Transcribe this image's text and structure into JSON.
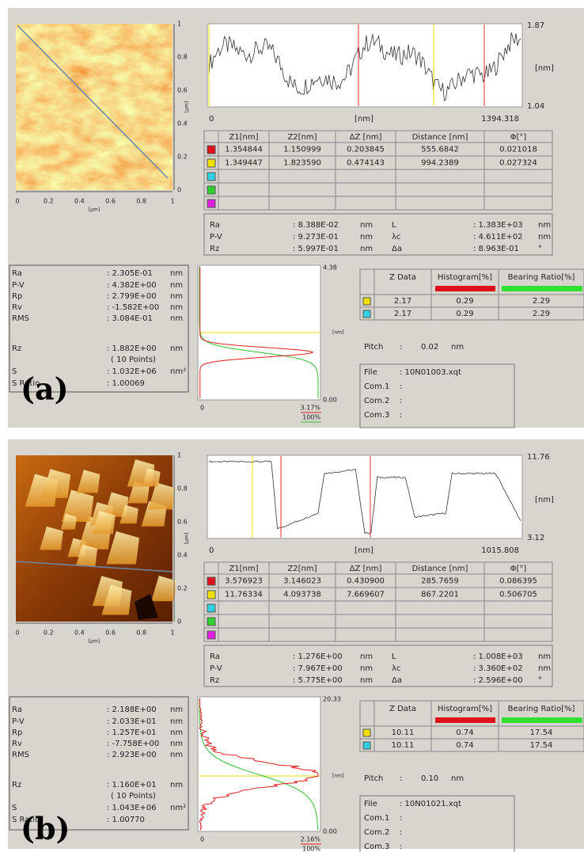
{
  "panels": [
    {
      "label": "(a)",
      "image": {
        "xticks": [
          "0",
          "0.2",
          "0.4",
          "0.6",
          "0.8",
          "1"
        ],
        "yticks": [
          "0",
          "0.2",
          "0.4",
          "0.6",
          "0.8",
          "1"
        ],
        "unit": "[μm]"
      },
      "profile": {
        "ymax": "1.87",
        "yunit": "[nm]",
        "ymin": "1.04",
        "xmin": "0",
        "xunit": "[nm]",
        "xmax": "1394.318"
      },
      "cursor_table": {
        "headers": [
          "Z1[nm]",
          "Z2[nm]",
          "ΔZ [nm]",
          "Distance [nm]",
          "Φ[°]"
        ],
        "rows": [
          [
            "1.354844",
            "1.150999",
            "0.203845",
            "555.6842",
            "0.021018"
          ],
          [
            "1.349447",
            "1.823590",
            "0.474143",
            "994.2389",
            "0.027324"
          ]
        ]
      },
      "roughness": [
        [
          "Ra",
          ": 8.388E-02",
          "nm",
          "L",
          ": 1.383E+03",
          "nm"
        ],
        [
          "P-V",
          ": 9.273E-01",
          "nm",
          "λc",
          ": 4.611E+02",
          "nm"
        ],
        [
          "Rz",
          ": 5.997E-01",
          "nm",
          "Δa",
          ": 8.963E-01",
          "°"
        ]
      ],
      "stats": [
        [
          "Ra",
          ": 2.305E-01",
          "nm"
        ],
        [
          "P-V",
          ": 4.382E+00",
          "nm"
        ],
        [
          "Rp",
          ": 2.799E+00",
          "nm"
        ],
        [
          "Rv",
          ": -1.582E+00",
          "nm"
        ],
        [
          "RMS",
          ": 3.084E-01",
          "nm"
        ],
        [
          "Rz",
          ": 1.882E+00",
          "nm"
        ],
        [
          "( 10 Points)"
        ],
        [
          "S",
          ": 1.032E+06",
          "nm²"
        ],
        [
          "S Ratio",
          ": 1.00069"
        ]
      ],
      "histogram": {
        "top": "4.38",
        "unit": "[nm]",
        "bottom": "0.00",
        "xmin": "0",
        "hist_max": "3.17%",
        "bearing_max": "100%"
      },
      "zdata_table": {
        "headers": [
          "Z Data",
          "Histogram[%]",
          "Bearing Ratio[%]"
        ],
        "rows": [
          [
            "2.17",
            "0.29",
            "2.29"
          ],
          [
            "2.17",
            "0.29",
            "2.29"
          ]
        ]
      },
      "pitch": [
        "Pitch",
        ":",
        "0.02",
        "nm"
      ],
      "file": [
        [
          "File",
          ": 10N01003.xqt"
        ],
        [
          "Com.1",
          ":"
        ],
        [
          "Com.2",
          ":"
        ],
        [
          "Com.3",
          ":"
        ]
      ]
    },
    {
      "label": "(b)",
      "image": {
        "xticks": [
          "0",
          "0.2",
          "0.4",
          "0.6",
          "0.8",
          "1"
        ],
        "yticks": [
          "0",
          "0.2",
          "0.4",
          "0.6",
          "0.8",
          "1"
        ],
        "unit": "[μm]"
      },
      "profile": {
        "ymax": "11.76",
        "yunit": "[nm]",
        "ymin": "3.12",
        "xmin": "0",
        "xunit": "[nm]",
        "xmax": "1015.808"
      },
      "cursor_table": {
        "headers": [
          "Z1[nm]",
          "Z2[nm]",
          "ΔZ [nm]",
          "Distance [nm]",
          "Φ[°]"
        ],
        "rows": [
          [
            "3.576923",
            "3.146023",
            "0.430900",
            "285.7659",
            "0.086395"
          ],
          [
            "11.76334",
            "4.093738",
            "7.669607",
            "867.2201",
            "0.506705"
          ]
        ]
      },
      "roughness": [
        [
          "Ra",
          ": 1.276E+00",
          "nm",
          "L",
          ": 1.008E+03",
          "nm"
        ],
        [
          "P-V",
          ": 7.967E+00",
          "nm",
          "λc",
          ": 3.360E+02",
          "nm"
        ],
        [
          "Rz",
          ": 5.775E+00",
          "nm",
          "Δa",
          ": 2.596E+00",
          "°"
        ]
      ],
      "stats": [
        [
          "Ra",
          ": 2.188E+00",
          "nm"
        ],
        [
          "P-V",
          ": 2.033E+01",
          "nm"
        ],
        [
          "Rp",
          ": 1.257E+01",
          "nm"
        ],
        [
          "Rv",
          ": -7.758E+00",
          "nm"
        ],
        [
          "RMS",
          ": 2.923E+00",
          "nm"
        ],
        [
          "Rz",
          ": 1.160E+01",
          "nm"
        ],
        [
          "( 10 Points)"
        ],
        [
          "S",
          ": 1.043E+06",
          "nm²"
        ],
        [
          "S Ratio",
          ": 1.00770"
        ]
      ],
      "histogram": {
        "top": "20.33",
        "unit": "[nm]",
        "bottom": "0.00",
        "xmin": "0",
        "hist_max": "2.16%",
        "bearing_max": "100%"
      },
      "zdata_table": {
        "headers": [
          "Z Data",
          "Histogram[%]",
          "Bearing Ratio[%]"
        ],
        "rows": [
          [
            "10.11",
            "0.74",
            "17.54"
          ],
          [
            "10.11",
            "0.74",
            "17.54"
          ]
        ]
      },
      "pitch": [
        "Pitch",
        ":",
        "0.10",
        "nm"
      ],
      "file": [
        [
          "File",
          ": 10N01021.xqt"
        ],
        [
          "Com.1",
          ":"
        ],
        [
          "Com.2",
          ":"
        ],
        [
          "Com.3",
          ":"
        ]
      ]
    }
  ]
}
